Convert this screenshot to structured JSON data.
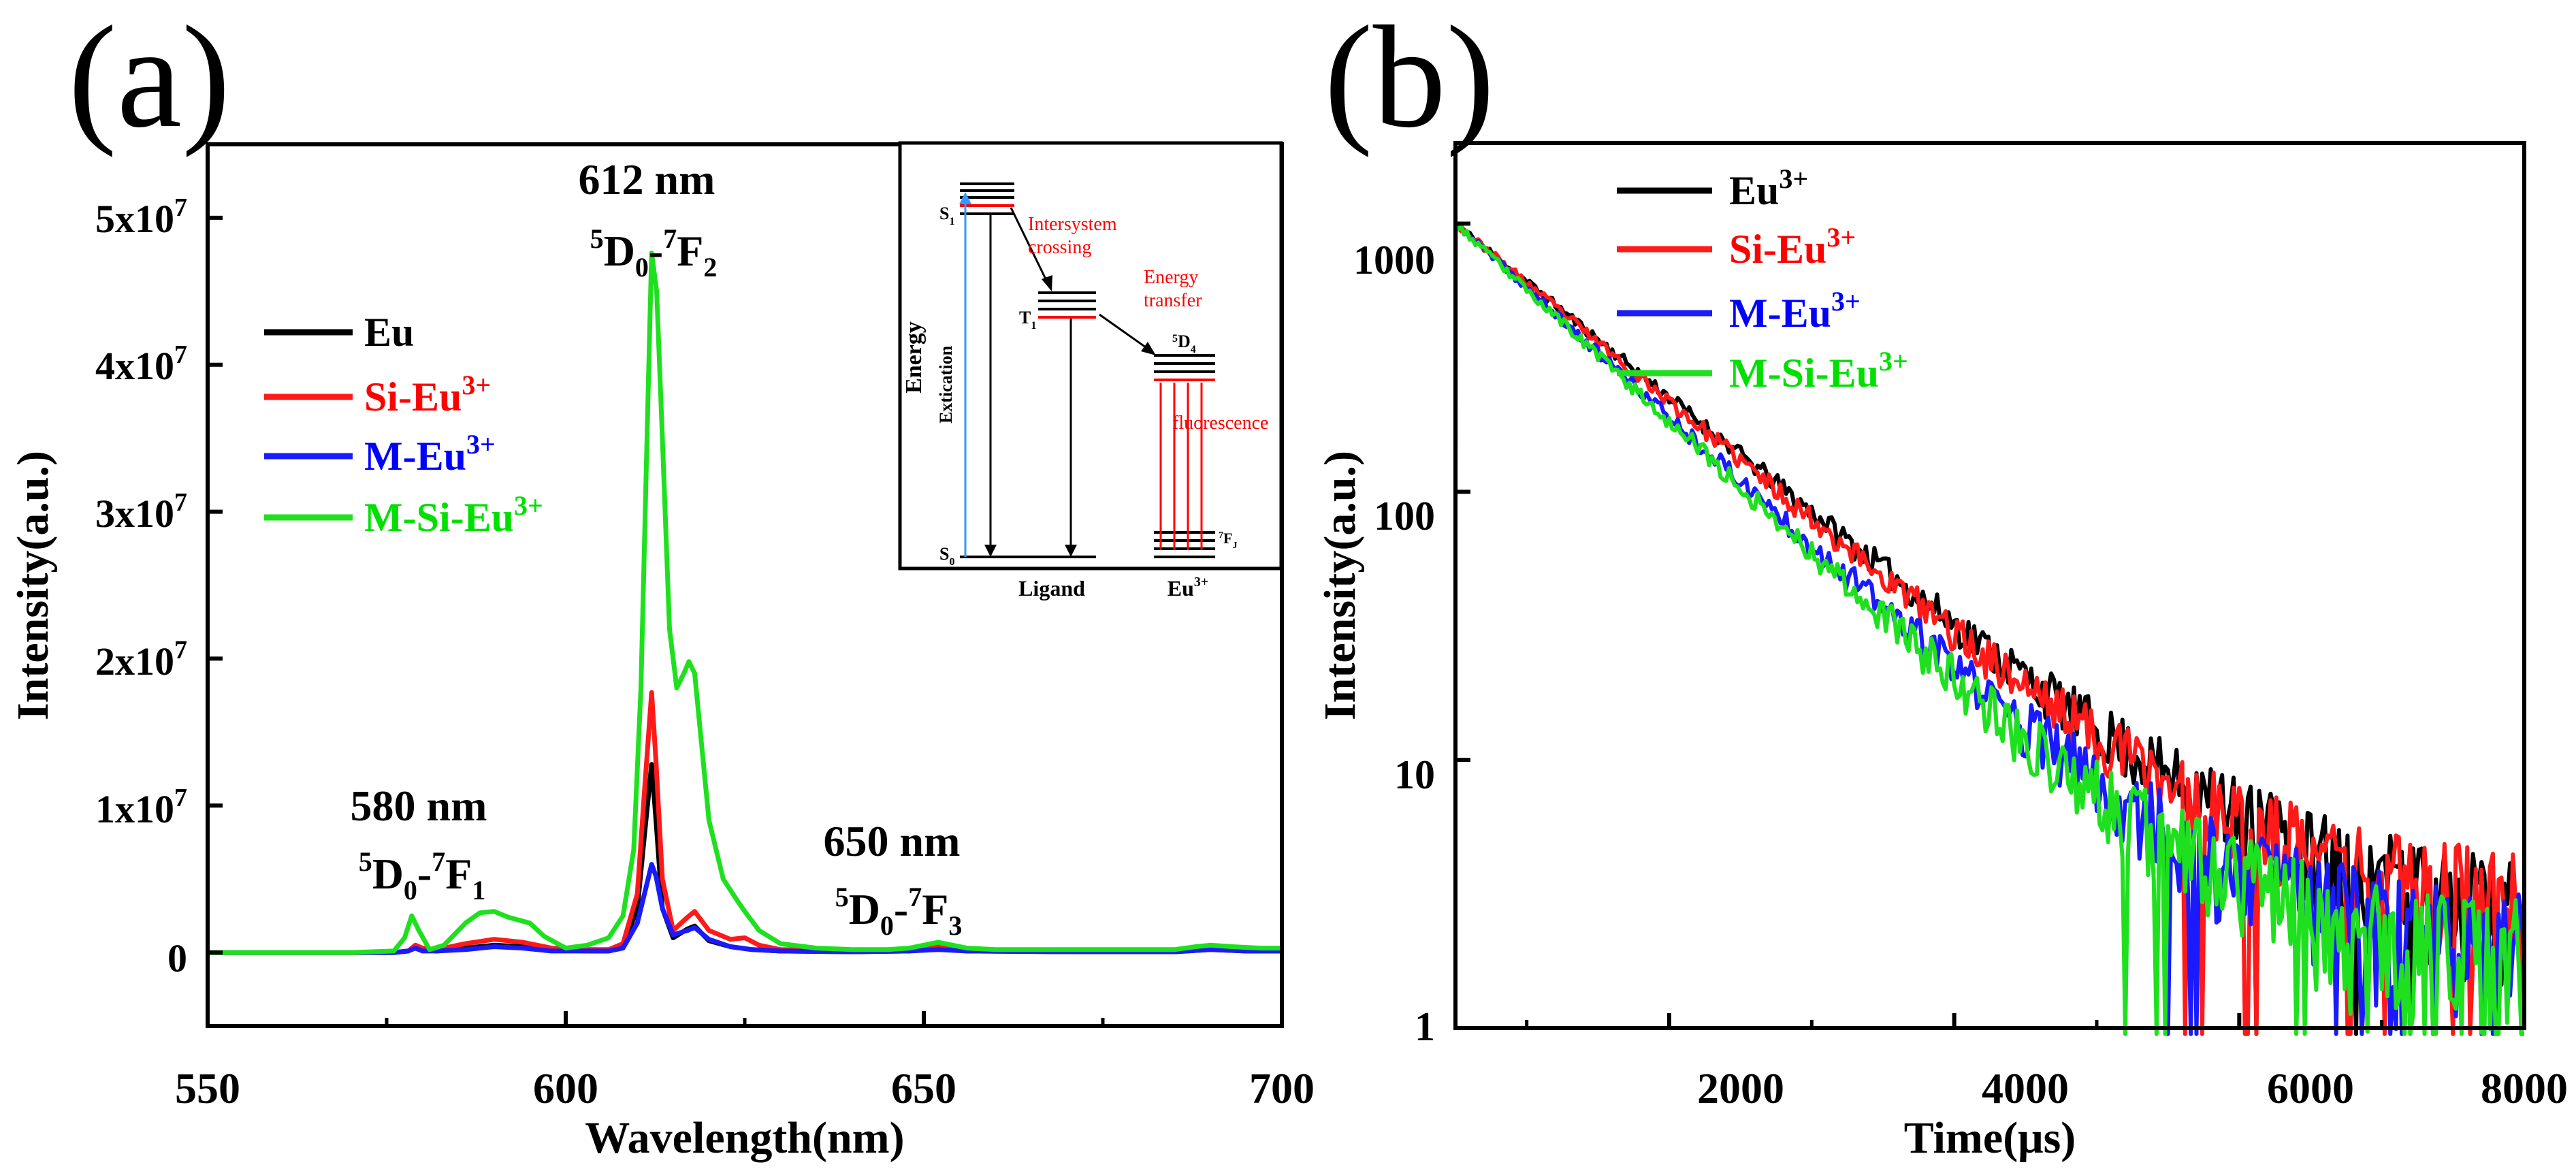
{
  "chart_data": [
    {
      "type": "line",
      "panel_label": "(a)",
      "xlabel": "Wavelength(nm)",
      "ylabel": "Intensity(a.u.)",
      "xlim": [
        550,
        700
      ],
      "ylim": [
        -5000000,
        55000000
      ],
      "x_ticks": [
        550,
        600,
        650,
        700
      ],
      "x_tick_labels": [
        "550",
        "600",
        "650",
        "700"
      ],
      "y_ticks": [
        0,
        10000000,
        20000000,
        30000000,
        40000000,
        50000000
      ],
      "y_tick_labels": [
        {
          "text": "0",
          "exp": ""
        },
        {
          "text": "1x10",
          "exp": "7"
        },
        {
          "text": "2x10",
          "exp": "7"
        },
        {
          "text": "3x10",
          "exp": "7"
        },
        {
          "text": "4x10",
          "exp": "7"
        },
        {
          "text": "5x10",
          "exp": "7"
        }
      ],
      "legend_position": "middle-left",
      "series": [
        {
          "name": "Eu",
          "sup": "",
          "color": "#000000",
          "label_color": "#000000",
          "points": [
            [
              550,
              0
            ],
            [
              570,
              0
            ],
            [
              576,
              0
            ],
            [
              578,
              100000
            ],
            [
              579,
              400000
            ],
            [
              580,
              200000
            ],
            [
              582,
              100000
            ],
            [
              586,
              300000
            ],
            [
              590,
              500000
            ],
            [
              594,
              400000
            ],
            [
              598,
              200000
            ],
            [
              603,
              100000
            ],
            [
              606,
              100000
            ],
            [
              608,
              400000
            ],
            [
              610,
              3000000
            ],
            [
              611,
              8000000
            ],
            [
              612,
              12800000
            ],
            [
              612.6,
              9000000
            ],
            [
              613.5,
              3000000
            ],
            [
              615,
              1000000
            ],
            [
              617,
              1600000
            ],
            [
              618,
              1800000
            ],
            [
              620,
              800000
            ],
            [
              623,
              400000
            ],
            [
              626,
              200000
            ],
            [
              630,
              100000
            ],
            [
              640,
              50000
            ],
            [
              648,
              100000
            ],
            [
              652,
              300000
            ],
            [
              656,
              100000
            ],
            [
              670,
              50000
            ],
            [
              685,
              50000
            ],
            [
              690,
              200000
            ],
            [
              695,
              100000
            ],
            [
              700,
              100000
            ]
          ]
        },
        {
          "name": "Si-Eu",
          "sup": "3+",
          "color": "#ff1a1a",
          "label_color": "#ff0000",
          "points": [
            [
              550,
              0
            ],
            [
              570,
              0
            ],
            [
              576,
              0
            ],
            [
              578,
              100000
            ],
            [
              579,
              500000
            ],
            [
              580,
              300000
            ],
            [
              582,
              200000
            ],
            [
              586,
              600000
            ],
            [
              590,
              900000
            ],
            [
              594,
              700000
            ],
            [
              598,
              300000
            ],
            [
              603,
              200000
            ],
            [
              606,
              200000
            ],
            [
              608,
              600000
            ],
            [
              610,
              4000000
            ],
            [
              611,
              11000000
            ],
            [
              612,
              17700000
            ],
            [
              612.6,
              13000000
            ],
            [
              613.5,
              5000000
            ],
            [
              615,
              1500000
            ],
            [
              617,
              2400000
            ],
            [
              618,
              2800000
            ],
            [
              620,
              1500000
            ],
            [
              623,
              900000
            ],
            [
              625,
              1000000
            ],
            [
              627,
              500000
            ],
            [
              630,
              200000
            ],
            [
              640,
              100000
            ],
            [
              648,
              200000
            ],
            [
              652,
              500000
            ],
            [
              656,
              200000
            ],
            [
              670,
              100000
            ],
            [
              685,
              100000
            ],
            [
              690,
              300000
            ],
            [
              695,
              200000
            ],
            [
              700,
              200000
            ]
          ]
        },
        {
          "name": "M-Eu",
          "sup": "3+",
          "color": "#1a1aff",
          "label_color": "#0000ff",
          "points": [
            [
              550,
              0
            ],
            [
              570,
              0
            ],
            [
              576,
              0
            ],
            [
              578,
              100000
            ],
            [
              579,
              300000
            ],
            [
              580,
              100000
            ],
            [
              582,
              100000
            ],
            [
              586,
              200000
            ],
            [
              590,
              400000
            ],
            [
              594,
              300000
            ],
            [
              598,
              100000
            ],
            [
              603,
              100000
            ],
            [
              606,
              100000
            ],
            [
              608,
              300000
            ],
            [
              610,
              2000000
            ],
            [
              611,
              4000000
            ],
            [
              612,
              6000000
            ],
            [
              612.6,
              5200000
            ],
            [
              613.5,
              3000000
            ],
            [
              615,
              1200000
            ],
            [
              617,
              1500000
            ],
            [
              618,
              1700000
            ],
            [
              620,
              900000
            ],
            [
              623,
              400000
            ],
            [
              626,
              200000
            ],
            [
              630,
              100000
            ],
            [
              640,
              50000
            ],
            [
              648,
              100000
            ],
            [
              652,
              200000
            ],
            [
              656,
              100000
            ],
            [
              670,
              50000
            ],
            [
              685,
              50000
            ],
            [
              690,
              200000
            ],
            [
              695,
              100000
            ],
            [
              700,
              100000
            ]
          ]
        },
        {
          "name": "M-Si-Eu",
          "sup": "3+",
          "color": "#1fe01f",
          "label_color": "#00e000",
          "points": [
            [
              550,
              0
            ],
            [
              570,
              0
            ],
            [
              576,
              100000
            ],
            [
              577.5,
              1000000
            ],
            [
              578.5,
              2500000
            ],
            [
              579.5,
              1500000
            ],
            [
              581,
              200000
            ],
            [
              583,
              500000
            ],
            [
              586,
              2000000
            ],
            [
              588,
              2700000
            ],
            [
              590,
              2800000
            ],
            [
              592,
              2400000
            ],
            [
              595,
              2000000
            ],
            [
              597,
              1100000
            ],
            [
              600,
              300000
            ],
            [
              603,
              500000
            ],
            [
              606,
              1000000
            ],
            [
              608,
              2500000
            ],
            [
              609.5,
              7000000
            ],
            [
              610.5,
              18000000
            ],
            [
              611.5,
              38000000
            ],
            [
              612,
              47600000
            ],
            [
              612.7,
              45000000
            ],
            [
              613.5,
              35000000
            ],
            [
              614.5,
              22000000
            ],
            [
              615.5,
              18000000
            ],
            [
              616.5,
              19000000
            ],
            [
              617.2,
              19800000
            ],
            [
              618,
              19000000
            ],
            [
              619,
              14000000
            ],
            [
              620,
              9000000
            ],
            [
              622,
              5000000
            ],
            [
              624,
              3500000
            ],
            [
              625,
              2800000
            ],
            [
              627,
              1500000
            ],
            [
              630,
              600000
            ],
            [
              635,
              300000
            ],
            [
              640,
              200000
            ],
            [
              645,
              200000
            ],
            [
              648,
              300000
            ],
            [
              650,
              500000
            ],
            [
              652,
              700000
            ],
            [
              654,
              500000
            ],
            [
              656,
              300000
            ],
            [
              660,
              200000
            ],
            [
              670,
              200000
            ],
            [
              680,
              200000
            ],
            [
              685,
              200000
            ],
            [
              688,
              400000
            ],
            [
              690,
              500000
            ],
            [
              693,
              400000
            ],
            [
              697,
              300000
            ],
            [
              700,
              300000
            ]
          ]
        }
      ],
      "annotations": [
        {
          "id": "612",
          "line1": "612 nm",
          "pre": "5",
          "a": "D",
          "sub": "0",
          "mid": "-",
          "pre2": "7",
          "b": "F",
          "sub2": "2"
        },
        {
          "id": "580",
          "line1": "580 nm",
          "pre": "5",
          "a": "D",
          "sub": "0",
          "mid": "-",
          "pre2": "7",
          "b": "F",
          "sub2": "1"
        },
        {
          "id": "650",
          "line1": "650 nm",
          "pre": "5",
          "a": "D",
          "sub": "0",
          "mid": "-",
          "pre2": "7",
          "b": "F",
          "sub2": "3"
        }
      ],
      "inset": {
        "energy_label": "Energy",
        "extication_label": "Extication",
        "s1_label": "S",
        "s1_sub": "1",
        "t1_label": "T",
        "t1_sub": "1",
        "s0_label": "S",
        "s0_sub": "0",
        "d_label_pre": "5",
        "d_label": "D",
        "d_label_sub": "4",
        "f_label_pre": "7",
        "f_label": "F",
        "f_label_sub": "J",
        "intersystem_1": "Intersystem",
        "intersystem_2": "crossing",
        "energy_transfer_1": "Energy",
        "energy_transfer_2": "transfer",
        "fluorescence": "fluorescence",
        "ligand_label": "Ligand",
        "eu_label": "Eu",
        "eu_sup": "3+",
        "accent_color": "#ff0000",
        "blue_color": "#3399ff"
      }
    },
    {
      "type": "line",
      "panel_label": "(b)",
      "xlabel": "Time(μs)",
      "ylabel": "Intensity(a.u.)",
      "yscale": "log",
      "xlim": [
        500,
        8000
      ],
      "ylim": [
        1,
        2000
      ],
      "x_ticks": [
        2000,
        4000,
        6000,
        8000
      ],
      "x_tick_labels": [
        "2000",
        "4000",
        "6000",
        "8000"
      ],
      "y_ticks": [
        1,
        10,
        100,
        1000
      ],
      "y_tick_labels": [
        "1",
        "10",
        "100",
        "1000"
      ],
      "legend_position": "top-left",
      "decay_model": "noisy single-exponential decay from 1000 at t=500 μs to the noise floor",
      "series": [
        {
          "name": "Eu",
          "sup": "3+",
          "color": "#000000",
          "label_color": "#000000",
          "tau": 1000,
          "floor": 2.2,
          "seed": 11
        },
        {
          "name": "Si-Eu",
          "sup": "3+",
          "color": "#ff1a1a",
          "label_color": "#ff0000",
          "tau": 975,
          "floor": 2.5,
          "seed": 23
        },
        {
          "name": "M-Eu",
          "sup": "3+",
          "color": "#1a1aff",
          "label_color": "#0000ff",
          "tau": 900,
          "floor": 1.7,
          "seed": 37
        },
        {
          "name": "M-Si-Eu",
          "sup": "3+",
          "color": "#1fe01f",
          "label_color": "#00e000",
          "tau": 880,
          "floor": 1.6,
          "seed": 53
        }
      ]
    }
  ]
}
